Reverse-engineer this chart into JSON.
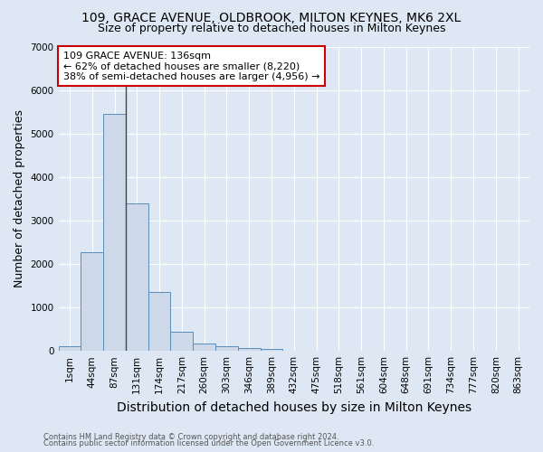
{
  "title1": "109, GRACE AVENUE, OLDBROOK, MILTON KEYNES, MK6 2XL",
  "title2": "Size of property relative to detached houses in Milton Keynes",
  "xlabel": "Distribution of detached houses by size in Milton Keynes",
  "ylabel": "Number of detached properties",
  "footer1": "Contains HM Land Registry data © Crown copyright and database right 2024.",
  "footer2": "Contains public sector information licensed under the Open Government Licence v3.0.",
  "bar_labels": [
    "1sqm",
    "44sqm",
    "87sqm",
    "131sqm",
    "174sqm",
    "217sqm",
    "260sqm",
    "303sqm",
    "346sqm",
    "389sqm",
    "432sqm",
    "475sqm",
    "518sqm",
    "561sqm",
    "604sqm",
    "648sqm",
    "691sqm",
    "734sqm",
    "777sqm",
    "820sqm",
    "863sqm"
  ],
  "bar_values": [
    100,
    2280,
    5450,
    3400,
    1350,
    450,
    175,
    100,
    75,
    50,
    0,
    0,
    0,
    0,
    0,
    0,
    0,
    0,
    0,
    0,
    0
  ],
  "bar_color": "#cdd9e8",
  "bar_edge_color": "#5b8db8",
  "ylim": [
    0,
    7000
  ],
  "yticks": [
    0,
    1000,
    2000,
    3000,
    4000,
    5000,
    6000,
    7000
  ],
  "annotation_line1": "109 GRACE AVENUE: 136sqm",
  "annotation_line2": "← 62% of detached houses are smaller (8,220)",
  "annotation_line3": "38% of semi-detached houses are larger (4,956) →",
  "annotation_box_facecolor": "#ffffff",
  "annotation_box_edgecolor": "#cc0000",
  "bg_color": "#dde8f4",
  "grid_color": "#ffffff",
  "property_line_x": 2.5,
  "title1_fontsize": 10,
  "title2_fontsize": 9,
  "axis_label_fontsize": 9,
  "tick_fontsize": 7.5,
  "annotation_fontsize": 8,
  "footer_fontsize": 6
}
